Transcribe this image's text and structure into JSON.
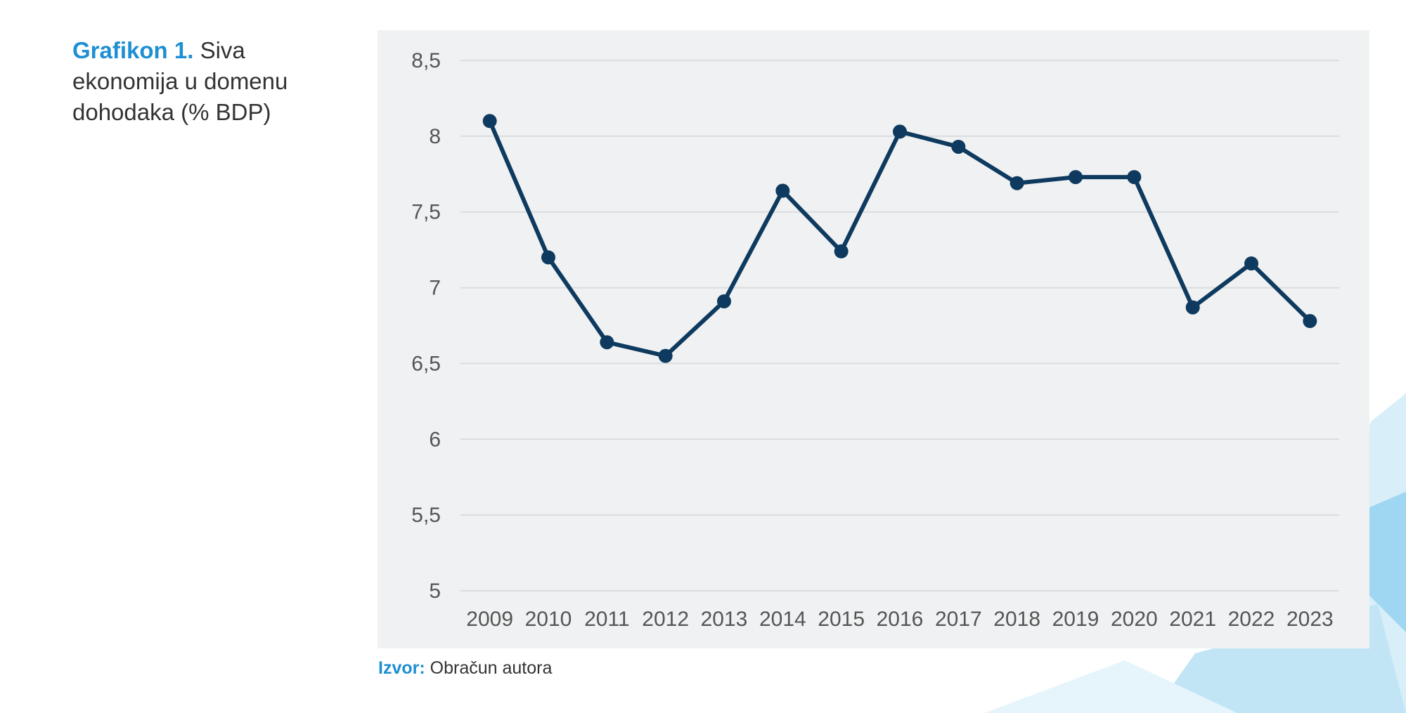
{
  "caption": {
    "label": "Grafikon 1.",
    "text": "Siva ekonomija u domenu dohodaka (% BDP)"
  },
  "source": {
    "label": "Izvor:",
    "text": "Obračun autora"
  },
  "colors": {
    "accent": "#1e8fd3",
    "line": "#0e3a5f",
    "panel": "#f0f1f2",
    "grid": "#dadcdf",
    "text": "#333333"
  },
  "chart_data": {
    "type": "line",
    "title": "Siva ekonomija u domenu dohodaka (% BDP)",
    "xlabel": "",
    "ylabel": "",
    "x": [
      "2009",
      "2010",
      "2011",
      "2012",
      "2013",
      "2014",
      "2015",
      "2016",
      "2017",
      "2018",
      "2019",
      "2020",
      "2021",
      "2022",
      "2023"
    ],
    "series": [
      {
        "values": [
          8.1,
          7.2,
          6.64,
          6.55,
          6.91,
          7.64,
          7.24,
          8.03,
          7.93,
          7.69,
          7.73,
          7.73,
          6.87,
          7.16,
          6.78
        ]
      }
    ],
    "ylim": [
      5,
      8.5
    ],
    "yticks": [
      5,
      5.5,
      6,
      6.5,
      7,
      7.5,
      8,
      8.5
    ],
    "ytick_labels": [
      "5",
      "5,5",
      "6",
      "6,5",
      "7",
      "7,5",
      "8",
      "8,5"
    ],
    "grid": true,
    "legend": "none",
    "markers": true
  }
}
